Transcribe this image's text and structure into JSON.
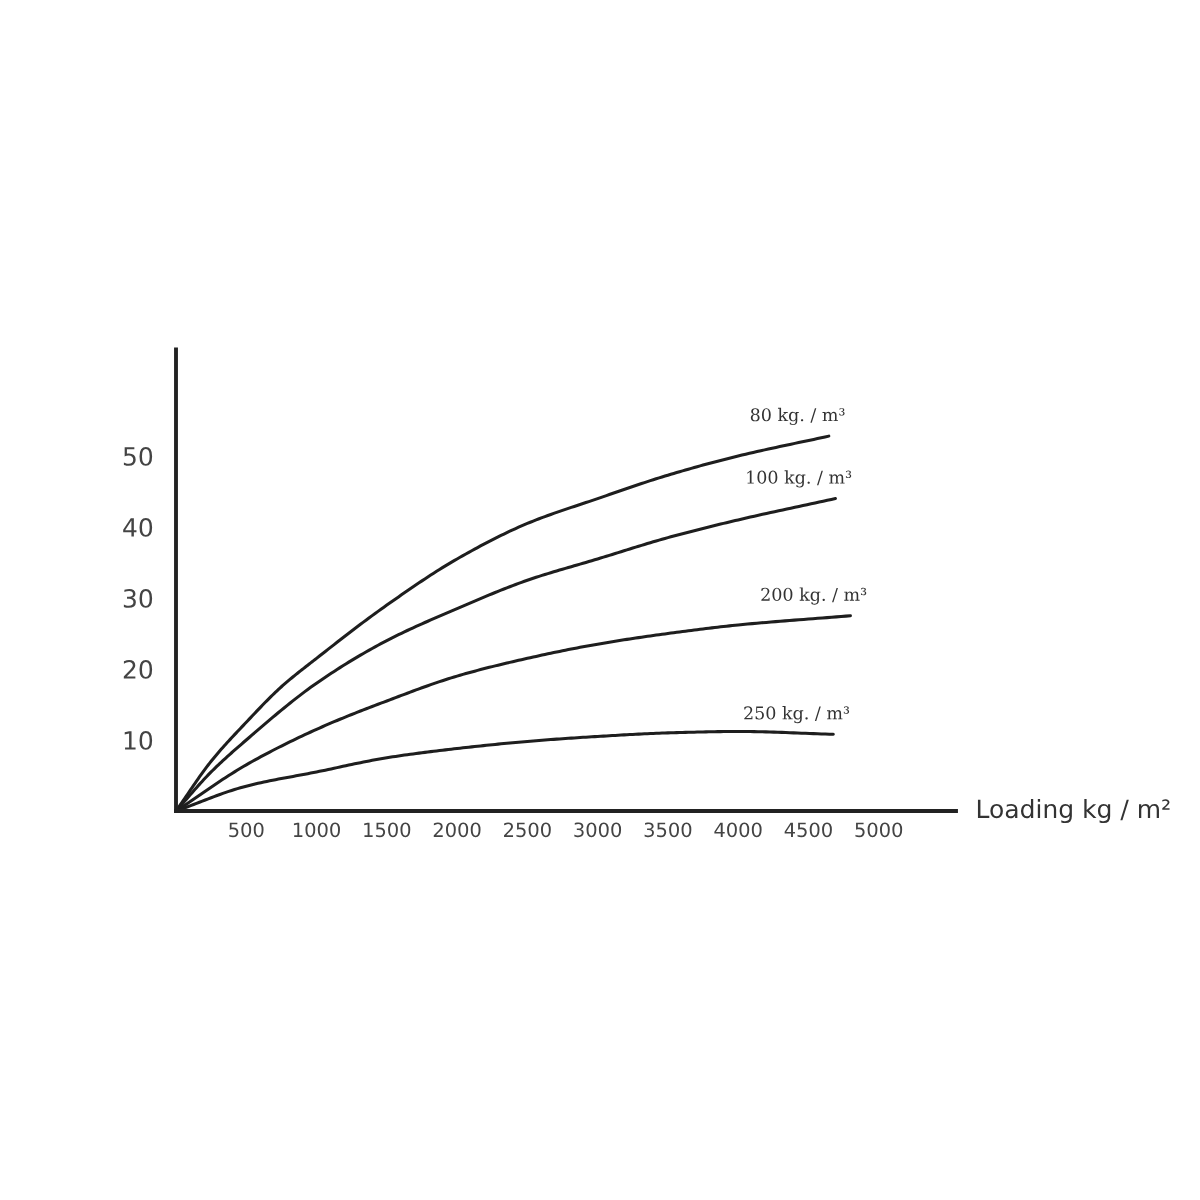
{
  "chart_data": {
    "type": "line",
    "xlabel": "Loading kg / m²",
    "xlim": [
      0,
      5550
    ],
    "xticks": [
      500,
      1000,
      1500,
      2000,
      2500,
      3000,
      3500,
      4000,
      4500,
      5000
    ],
    "ylim": [
      0,
      65
    ],
    "yticks": [
      10,
      20,
      30,
      40,
      50
    ],
    "grid": false,
    "series": [
      {
        "name": "80 kg. / m³",
        "color": "#1e1e1e",
        "x": [
          0,
          250,
          500,
          750,
          1000,
          1500,
          2000,
          2500,
          3000,
          3500,
          4000,
          4645
        ],
        "values": [
          0,
          7,
          12.5,
          17.5,
          21.5,
          29,
          35.5,
          40.5,
          44,
          47.3,
          50,
          52.8
        ]
      },
      {
        "name": "100 kg. / m³",
        "color": "#1e1e1e",
        "x": [
          0,
          250,
          500,
          1000,
          1500,
          2000,
          2500,
          3000,
          3500,
          4000,
          4692
        ],
        "values": [
          0,
          5.5,
          10,
          18,
          24,
          28.5,
          32.5,
          35.5,
          38.5,
          41,
          44
        ]
      },
      {
        "name": "200 kg. / m³",
        "color": "#1e1e1e",
        "x": [
          0,
          500,
          1000,
          1500,
          2000,
          2500,
          3000,
          3500,
          4000,
          4799
        ],
        "values": [
          0,
          6.5,
          11.5,
          15.5,
          19,
          21.5,
          23.5,
          25,
          26.2,
          27.5
        ]
      },
      {
        "name": "250 kg. / m³",
        "color": "#1e1e1e",
        "x": [
          0,
          500,
          1000,
          1500,
          2000,
          2500,
          3000,
          3500,
          4000,
          4677
        ],
        "values": [
          0,
          3.5,
          5.5,
          7.5,
          8.8,
          9.8,
          10.5,
          11,
          11.2,
          10.8
        ]
      }
    ]
  }
}
